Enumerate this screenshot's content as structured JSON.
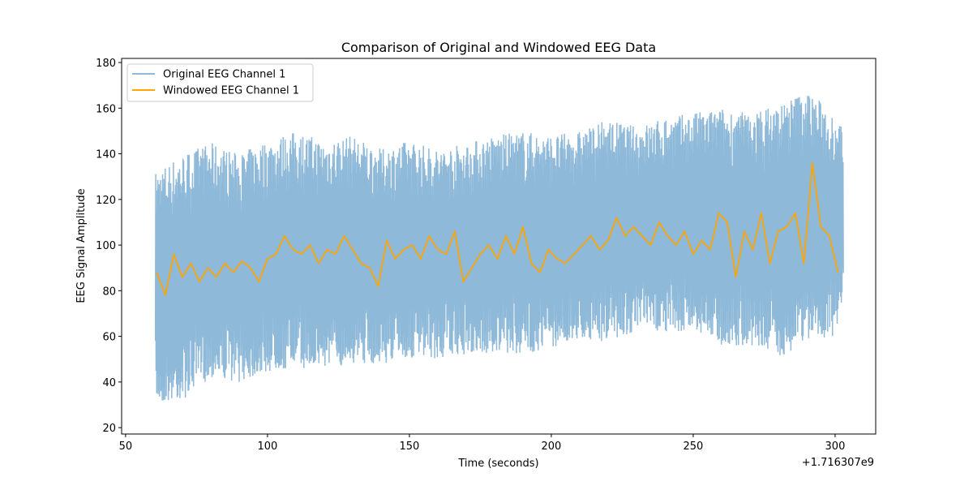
{
  "chart_data": {
    "type": "line",
    "title": "Comparison of Original and Windowed EEG Data",
    "xlabel": "Time (seconds)",
    "ylabel": "EEG Signal Amplitude",
    "x_offset_label": "+1.716307e9",
    "xlim": [
      48.6,
      314.3
    ],
    "ylim": [
      17.2,
      181.8
    ],
    "xticks": [
      50,
      100,
      150,
      200,
      250,
      300
    ],
    "yticks": [
      20,
      40,
      60,
      80,
      100,
      120,
      140,
      160,
      180
    ],
    "grid": false,
    "legend_position": "top-left",
    "series": [
      {
        "name": "Original EEG Channel 1",
        "color": "#8fb9d9",
        "envelope_x": [
          60,
          70,
          80,
          90,
          100,
          110,
          120,
          130,
          140,
          150,
          160,
          170,
          180,
          190,
          200,
          210,
          220,
          230,
          240,
          250,
          260,
          270,
          280,
          290,
          300,
          303
        ],
        "upper": [
          132,
          140,
          145,
          140,
          146,
          150,
          146,
          148,
          142,
          146,
          142,
          145,
          148,
          150,
          148,
          150,
          155,
          152,
          156,
          158,
          160,
          158,
          162,
          168,
          158,
          150
        ],
        "lower": [
          30,
          32,
          42,
          40,
          44,
          46,
          46,
          48,
          48,
          50,
          50,
          52,
          52,
          52,
          55,
          58,
          58,
          62,
          62,
          62,
          56,
          56,
          50,
          58,
          60,
          78
        ]
      },
      {
        "name": "Windowed EEG Channel 1",
        "color": "#ffa500",
        "x": [
          61,
          64,
          67,
          70,
          73,
          76,
          79,
          82,
          85,
          88,
          91,
          94,
          97,
          100,
          103,
          106,
          109,
          112,
          115,
          118,
          121,
          124,
          127,
          130,
          133,
          136,
          139,
          142,
          145,
          148,
          151,
          154,
          157,
          160,
          163,
          166,
          169,
          172,
          175,
          178,
          181,
          184,
          187,
          190,
          193,
          196,
          199,
          202,
          205,
          208,
          211,
          214,
          217,
          220,
          223,
          226,
          229,
          232,
          235,
          238,
          241,
          244,
          247,
          250,
          253,
          256,
          259,
          262,
          265,
          268,
          271,
          274,
          277,
          280,
          283,
          286,
          289,
          292,
          295,
          298,
          301
        ],
        "y": [
          88,
          78,
          96,
          86,
          92,
          84,
          90,
          86,
          92,
          88,
          93,
          90,
          84,
          94,
          96,
          104,
          98,
          96,
          100,
          92,
          98,
          96,
          104,
          98,
          92,
          90,
          82,
          102,
          94,
          98,
          100,
          94,
          104,
          98,
          96,
          106,
          84,
          90,
          96,
          100,
          94,
          104,
          96,
          108,
          92,
          88,
          98,
          94,
          92,
          96,
          100,
          104,
          98,
          102,
          112,
          104,
          108,
          104,
          100,
          110,
          104,
          100,
          106,
          96,
          102,
          98,
          114,
          110,
          86,
          106,
          98,
          114,
          92,
          106,
          108,
          114,
          92,
          136,
          108,
          104,
          88
        ]
      }
    ]
  }
}
